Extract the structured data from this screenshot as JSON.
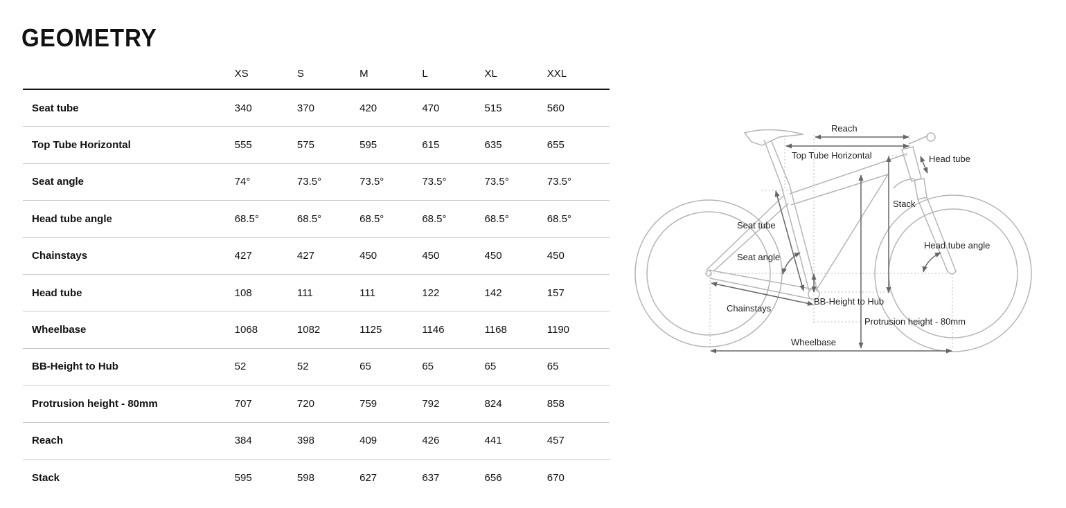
{
  "title": "GEOMETRY",
  "table": {
    "sizes": [
      "XS",
      "S",
      "M",
      "L",
      "XL",
      "XXL"
    ],
    "rows": [
      {
        "label": "Seat tube",
        "values": [
          "340",
          "370",
          "420",
          "470",
          "515",
          "560"
        ]
      },
      {
        "label": "Top Tube Horizontal",
        "values": [
          "555",
          "575",
          "595",
          "615",
          "635",
          "655"
        ]
      },
      {
        "label": "Seat angle",
        "values": [
          "74°",
          "73.5°",
          "73.5°",
          "73.5°",
          "73.5°",
          "73.5°"
        ]
      },
      {
        "label": "Head tube angle",
        "values": [
          "68.5°",
          "68.5°",
          "68.5°",
          "68.5°",
          "68.5°",
          "68.5°"
        ]
      },
      {
        "label": "Chainstays",
        "values": [
          "427",
          "427",
          "450",
          "450",
          "450",
          "450"
        ]
      },
      {
        "label": "Head tube",
        "values": [
          "108",
          "111",
          "111",
          "122",
          "142",
          "157"
        ]
      },
      {
        "label": "Wheelbase",
        "values": [
          "1068",
          "1082",
          "1125",
          "1146",
          "1168",
          "1190"
        ]
      },
      {
        "label": "BB-Height to Hub",
        "values": [
          "52",
          "52",
          "65",
          "65",
          "65",
          "65"
        ]
      },
      {
        "label": "Protrusion height - 80mm",
        "values": [
          "707",
          "720",
          "759",
          "792",
          "824",
          "858"
        ]
      },
      {
        "label": "Reach",
        "values": [
          "384",
          "398",
          "409",
          "426",
          "441",
          "457"
        ]
      },
      {
        "label": "Stack",
        "values": [
          "595",
          "598",
          "627",
          "637",
          "656",
          "670"
        ]
      }
    ]
  },
  "diagram": {
    "labels": {
      "reach": "Reach",
      "top_tube": "Top Tube Horizontal",
      "head_tube": "Head tube",
      "stack": "Stack",
      "seat_tube": "Seat tube",
      "seat_angle": "Seat angle",
      "head_tube_angle": "Head tube angle",
      "chainstays": "Chainstays",
      "bb_height": "BB-Height to Hub",
      "protrusion": "Protrusion height - 80mm",
      "wheelbase": "Wheelbase"
    },
    "colors": {
      "frame": "#b5b5b5",
      "arrow": "#666666"
    }
  }
}
